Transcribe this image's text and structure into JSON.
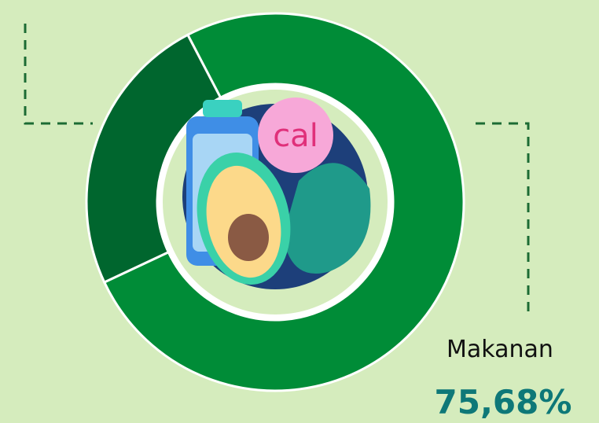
{
  "chart_data": {
    "type": "donut",
    "categories": [
      "Makanan",
      null
    ],
    "values": [
      75.68,
      24.32
    ],
    "value_labels": [
      "75,68%",
      null
    ],
    "colors": [
      "#008c37",
      "#00662e"
    ],
    "icon_text": "cal"
  }
}
